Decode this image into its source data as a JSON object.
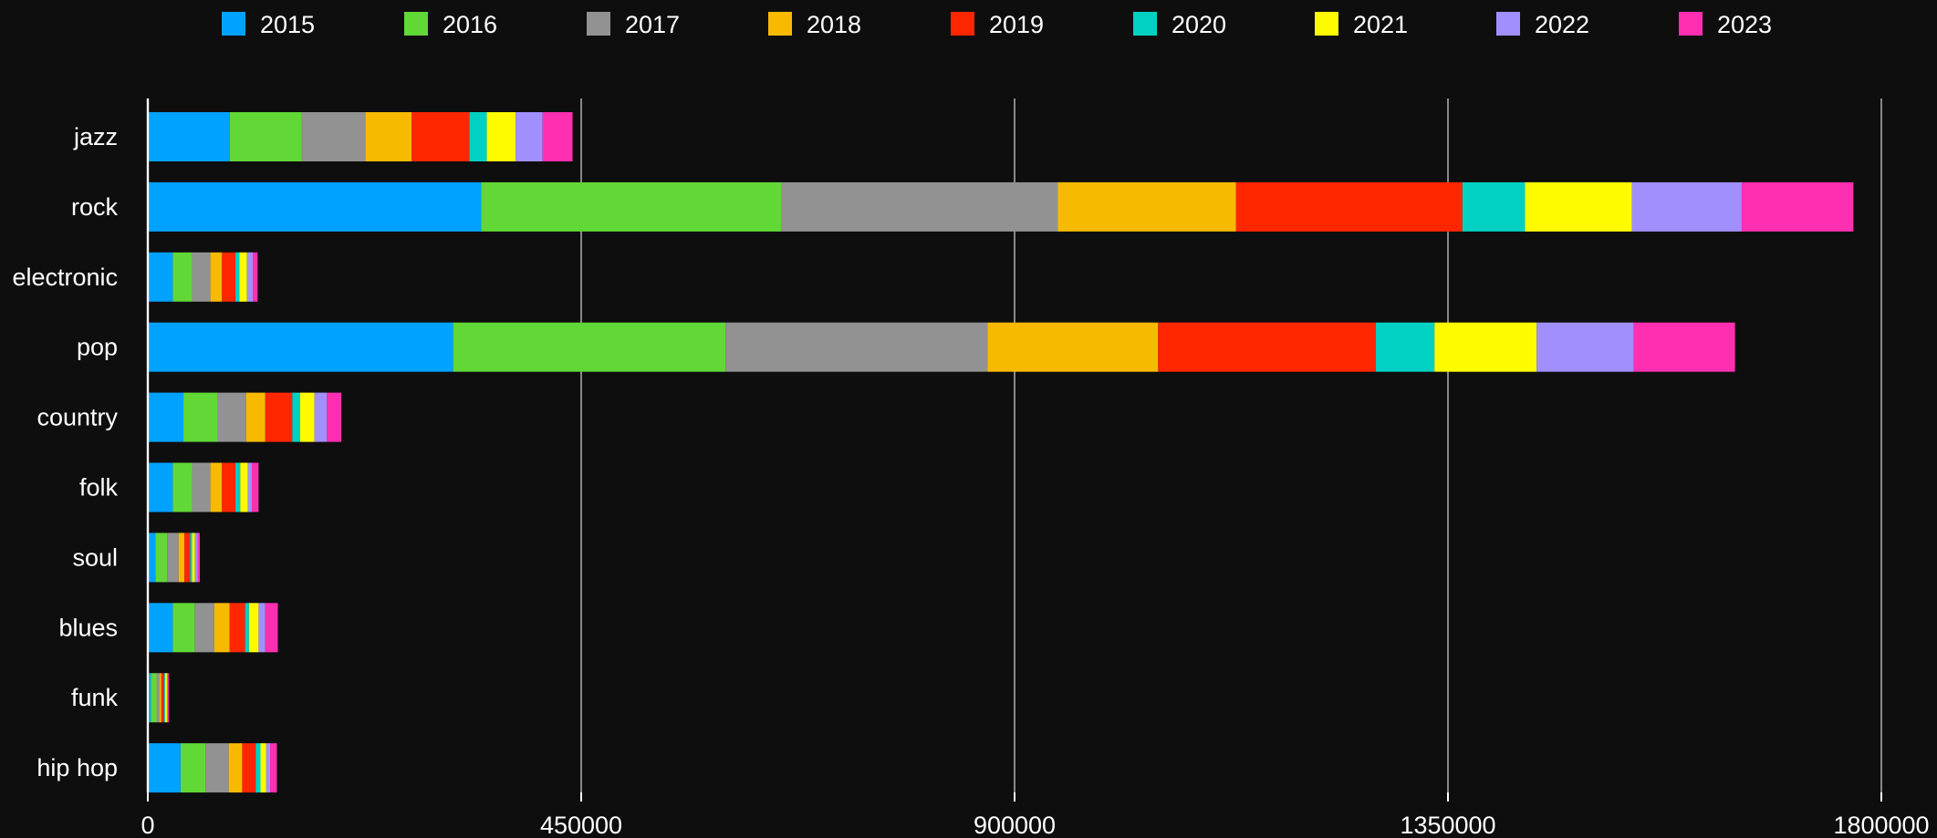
{
  "chart_data": {
    "type": "bar",
    "orientation": "horizontal",
    "stacked": true,
    "categories": [
      "jazz",
      "rock",
      "electronic",
      "pop",
      "country",
      "folk",
      "soul",
      "blues",
      "funk",
      "hip hop"
    ],
    "series": [
      {
        "name": "2015",
        "color": "#00a2ff",
        "values": [
          85000,
          346000,
          26000,
          317000,
          37000,
          26000,
          8000,
          26000,
          3000,
          34000
        ]
      },
      {
        "name": "2016",
        "color": "#61d836",
        "values": [
          75000,
          312000,
          20000,
          283000,
          35000,
          20000,
          12000,
          23000,
          6000,
          26000
        ]
      },
      {
        "name": "2017",
        "color": "#929292",
        "values": [
          66000,
          287000,
          19000,
          272000,
          30000,
          19000,
          12000,
          20000,
          3000,
          24000
        ]
      },
      {
        "name": "2018",
        "color": "#f8ba00",
        "values": [
          48000,
          185000,
          12000,
          177000,
          20000,
          12000,
          6000,
          16000,
          2000,
          14000
        ]
      },
      {
        "name": "2019",
        "color": "#ff2600",
        "values": [
          60000,
          235000,
          14000,
          226000,
          28000,
          14000,
          6000,
          16000,
          3000,
          14000
        ]
      },
      {
        "name": "2020",
        "color": "#00d1c3",
        "values": [
          18000,
          65000,
          4000,
          61000,
          8000,
          5000,
          2000,
          4000,
          1000,
          5000
        ]
      },
      {
        "name": "2021",
        "color": "#fefb00",
        "values": [
          30000,
          111000,
          8000,
          106000,
          15000,
          8000,
          3000,
          10000,
          2000,
          6000
        ]
      },
      {
        "name": "2022",
        "color": "#a28ffe",
        "values": [
          28000,
          114000,
          6000,
          101000,
          13000,
          4000,
          3000,
          7000,
          1000,
          4000
        ]
      },
      {
        "name": "2023",
        "color": "#ff2fb1",
        "values": [
          31000,
          116000,
          5000,
          105000,
          15000,
          7000,
          2000,
          13000,
          1000,
          7000
        ]
      }
    ],
    "xlim": [
      0,
      1800000
    ],
    "xticks": [
      "0",
      "450000",
      "900000",
      "1350000",
      "1800000"
    ],
    "grid": "vertical",
    "legend_position": "top",
    "background": "#0e0e0e"
  }
}
